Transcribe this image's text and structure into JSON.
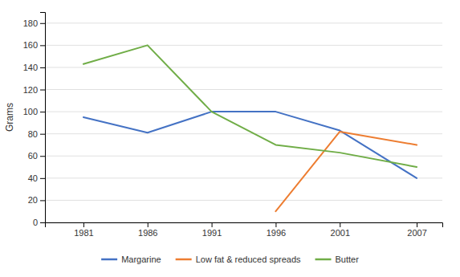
{
  "chart_data": {
    "type": "line",
    "x": [
      1981,
      1986,
      1991,
      1996,
      2001,
      2007
    ],
    "series": [
      {
        "name": "Margarine",
        "color": "#4472C4",
        "values": [
          95,
          81,
          100,
          100,
          83,
          40
        ]
      },
      {
        "name": "Low fat & reduced spreads",
        "color": "#ED7D31",
        "values": [
          null,
          null,
          null,
          10,
          82,
          70
        ]
      },
      {
        "name": "Butter",
        "color": "#70AD47",
        "values": [
          143,
          160,
          100,
          70,
          63,
          50
        ]
      }
    ],
    "y_label": "Grams",
    "xlim": [
      1978,
      2009
    ],
    "xticks": [
      1981,
      1986,
      1991,
      1996,
      2001,
      2007
    ],
    "ylim": [
      0,
      190
    ],
    "yticks": [
      0,
      20,
      40,
      60,
      80,
      100,
      120,
      140,
      160,
      180
    ],
    "grid": true,
    "legend": "bottom"
  }
}
